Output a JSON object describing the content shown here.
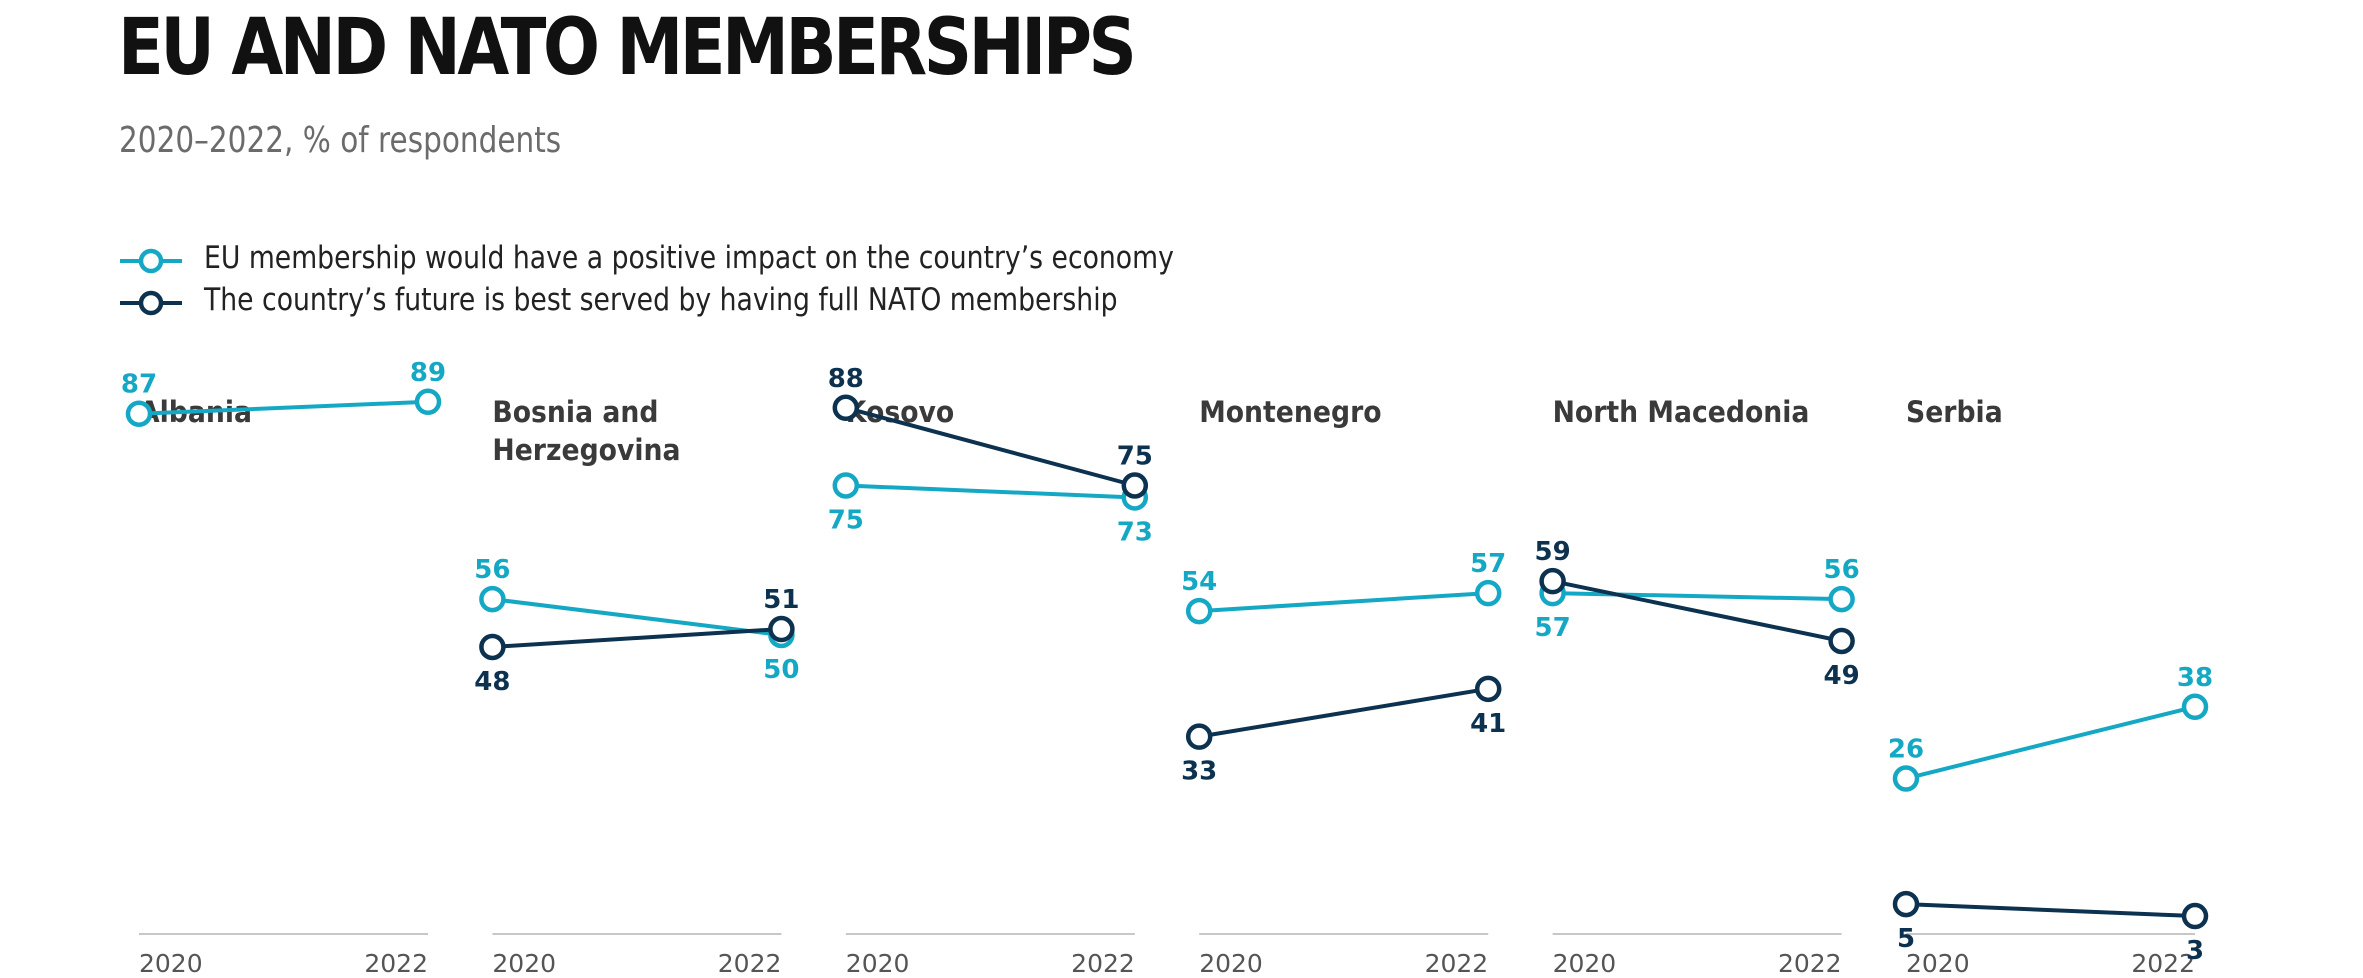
{
  "title": "EU AND NATO MEMBERSHIPS",
  "subtitle": "2020–2022, % of respondents",
  "colors": {
    "eu": "#15a8c4",
    "nato": "#0c3250",
    "axis": "#c7c7c7",
    "label": "#3a3a3a",
    "tick": "#555555"
  },
  "legend": [
    {
      "label": "EU membership would have a positive impact on the country’s economy",
      "color": "#15a8c4"
    },
    {
      "label": "The country’s future is best served by having full NATO membership",
      "color": "#0c3250"
    }
  ],
  "chart_data": {
    "type": "line",
    "x": [
      "2020",
      "2022"
    ],
    "ylim": [
      0,
      100
    ],
    "panels": [
      {
        "name": "Albania",
        "series": [
          {
            "name": "EU",
            "values": [
              87,
              89
            ]
          }
        ]
      },
      {
        "name": "Bosnia and Herzegovina",
        "series": [
          {
            "name": "EU",
            "values": [
              56,
              50
            ]
          },
          {
            "name": "NATO",
            "values": [
              48,
              51
            ]
          }
        ]
      },
      {
        "name": "Kosovo",
        "series": [
          {
            "name": "EU",
            "values": [
              75,
              73
            ]
          },
          {
            "name": "NATO",
            "values": [
              88,
              75
            ]
          }
        ]
      },
      {
        "name": "Montenegro",
        "series": [
          {
            "name": "EU",
            "values": [
              54,
              57
            ]
          },
          {
            "name": "NATO",
            "values": [
              33,
              41
            ]
          }
        ]
      },
      {
        "name": "North Macedonia",
        "series": [
          {
            "name": "EU",
            "values": [
              57,
              56
            ]
          },
          {
            "name": "NATO",
            "values": [
              59,
              49
            ]
          }
        ]
      },
      {
        "name": "Serbia",
        "series": [
          {
            "name": "EU",
            "values": [
              26,
              38
            ]
          },
          {
            "name": "NATO",
            "values": [
              5,
              3
            ]
          }
        ]
      }
    ]
  }
}
